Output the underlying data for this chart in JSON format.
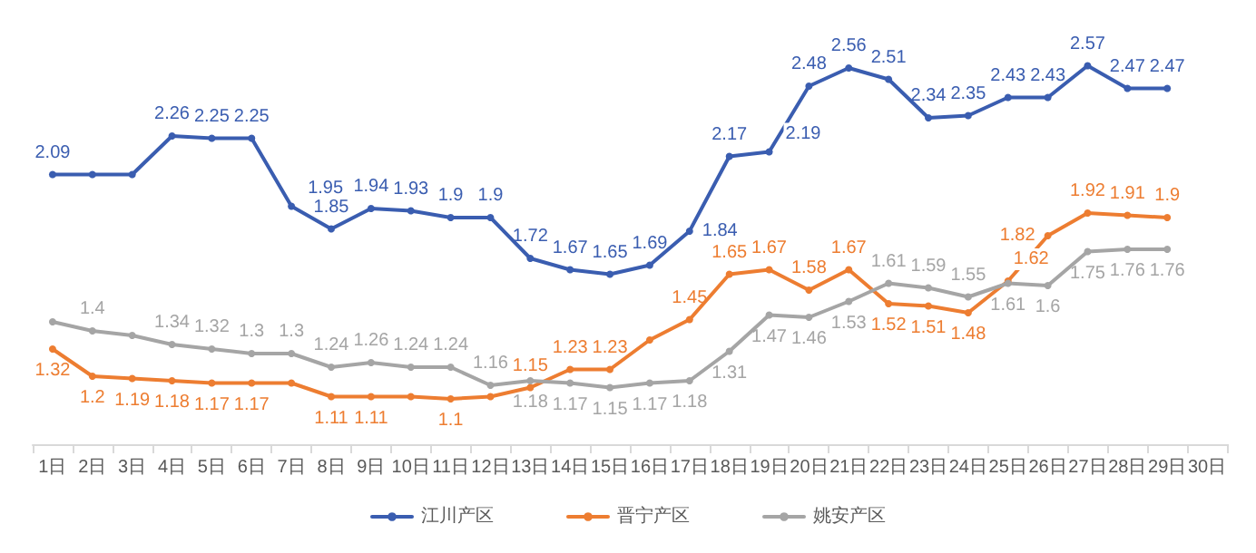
{
  "chart_data": {
    "type": "line",
    "categories": [
      "1日",
      "2日",
      "3日",
      "4日",
      "5日",
      "6日",
      "7日",
      "8日",
      "9日",
      "10日",
      "11日",
      "12日",
      "13日",
      "14日",
      "15日",
      "16日",
      "17日",
      "18日",
      "19日",
      "20日",
      "21日",
      "22日",
      "23日",
      "24日",
      "25日",
      "26日",
      "27日",
      "28日",
      "29日",
      "30日"
    ],
    "series": [
      {
        "name": "江川产区",
        "color": "#3a5db0",
        "values": [
          2.09,
          2.09,
          2.09,
          2.26,
          2.25,
          2.25,
          1.95,
          1.85,
          1.94,
          1.93,
          1.9,
          1.9,
          1.72,
          1.67,
          1.65,
          1.69,
          1.84,
          2.17,
          2.19,
          2.48,
          2.56,
          2.51,
          2.34,
          2.35,
          2.43,
          2.43,
          2.57,
          2.47,
          2.47,
          null
        ],
        "value_labels": [
          "2.09",
          null,
          null,
          "2.26",
          "2.25",
          "2.25",
          "1.95",
          "1.85",
          "1.94",
          "1.93",
          "1.9",
          "1.9",
          "1.72",
          "1.67",
          "1.65",
          "1.69",
          "1.84",
          "2.17",
          "2.19",
          "2.48",
          "2.56",
          "2.51",
          "2.34",
          "2.35",
          "2.43",
          "2.43",
          "2.57",
          "2.47",
          "2.47",
          null
        ]
      },
      {
        "name": "晋宁产区",
        "color": "#ed7d31",
        "values": [
          1.32,
          1.2,
          1.19,
          1.18,
          1.17,
          1.17,
          1.17,
          1.11,
          1.11,
          1.11,
          1.1,
          1.11,
          1.15,
          1.23,
          1.23,
          1.36,
          1.45,
          1.65,
          1.67,
          1.58,
          1.67,
          1.52,
          1.51,
          1.48,
          1.62,
          1.82,
          1.92,
          1.91,
          1.9,
          null
        ],
        "value_labels": [
          "1.32",
          "1.2",
          "1.19",
          "1.18",
          "1.17",
          "1.17",
          null,
          "1.11",
          "1.11",
          null,
          "1.1",
          null,
          "1.15",
          "1.23",
          "1.23",
          null,
          "1.45",
          "1.65",
          "1.67",
          "1.58",
          "1.67",
          "1.52",
          "1.51",
          "1.48",
          "1.62",
          "1.82",
          "1.92",
          "1.91",
          "1.9",
          null
        ]
      },
      {
        "name": "姚安产区",
        "color": "#a5a5a5",
        "values": [
          1.44,
          1.4,
          1.38,
          1.34,
          1.32,
          1.3,
          1.3,
          1.24,
          1.26,
          1.24,
          1.24,
          1.16,
          1.18,
          1.17,
          1.15,
          1.17,
          1.18,
          1.31,
          1.47,
          1.46,
          1.53,
          1.61,
          1.59,
          1.55,
          1.61,
          1.6,
          1.75,
          1.76,
          1.76,
          null
        ],
        "value_labels": [
          null,
          "1.4",
          null,
          "1.34",
          "1.32",
          "1.3",
          "1.3",
          "1.24",
          "1.26",
          "1.24",
          "1.24",
          "1.16",
          "1.18",
          "1.17",
          "1.15",
          "1.17",
          "1.18",
          "1.31",
          "1.47",
          "1.46",
          "1.53",
          "1.61",
          "1.59",
          "1.55",
          "1.61",
          "1.6",
          "1.75",
          "1.76",
          "1.76",
          null
        ]
      }
    ],
    "legend": "bottom",
    "marker": "circle",
    "line_style": "solid",
    "grid": false
  }
}
